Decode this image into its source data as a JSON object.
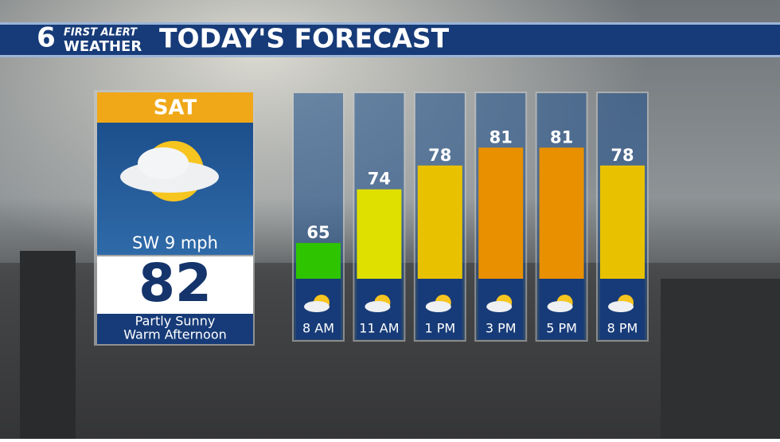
{
  "header": {
    "logo_number": "6",
    "logo_line1": "FIRST ALERT",
    "logo_line2": "WEATHER",
    "title": "TODAY'S FORECAST"
  },
  "day_panel": {
    "day": "SAT",
    "wind": "SW 9 mph",
    "high": 82,
    "condition_line1": "Partly Sunny",
    "condition_line2": "Warm Afternoon"
  },
  "chart_data": {
    "type": "bar",
    "categories": [
      "8 AM",
      "11 AM",
      "1 PM",
      "3 PM",
      "5 PM",
      "8 PM"
    ],
    "values": [
      65,
      74,
      78,
      81,
      81,
      78
    ],
    "colors": [
      "#2ec400",
      "#dfe000",
      "#e8c200",
      "#e89000",
      "#e89000",
      "#e8c200"
    ],
    "ylim": [
      59,
      90
    ]
  }
}
